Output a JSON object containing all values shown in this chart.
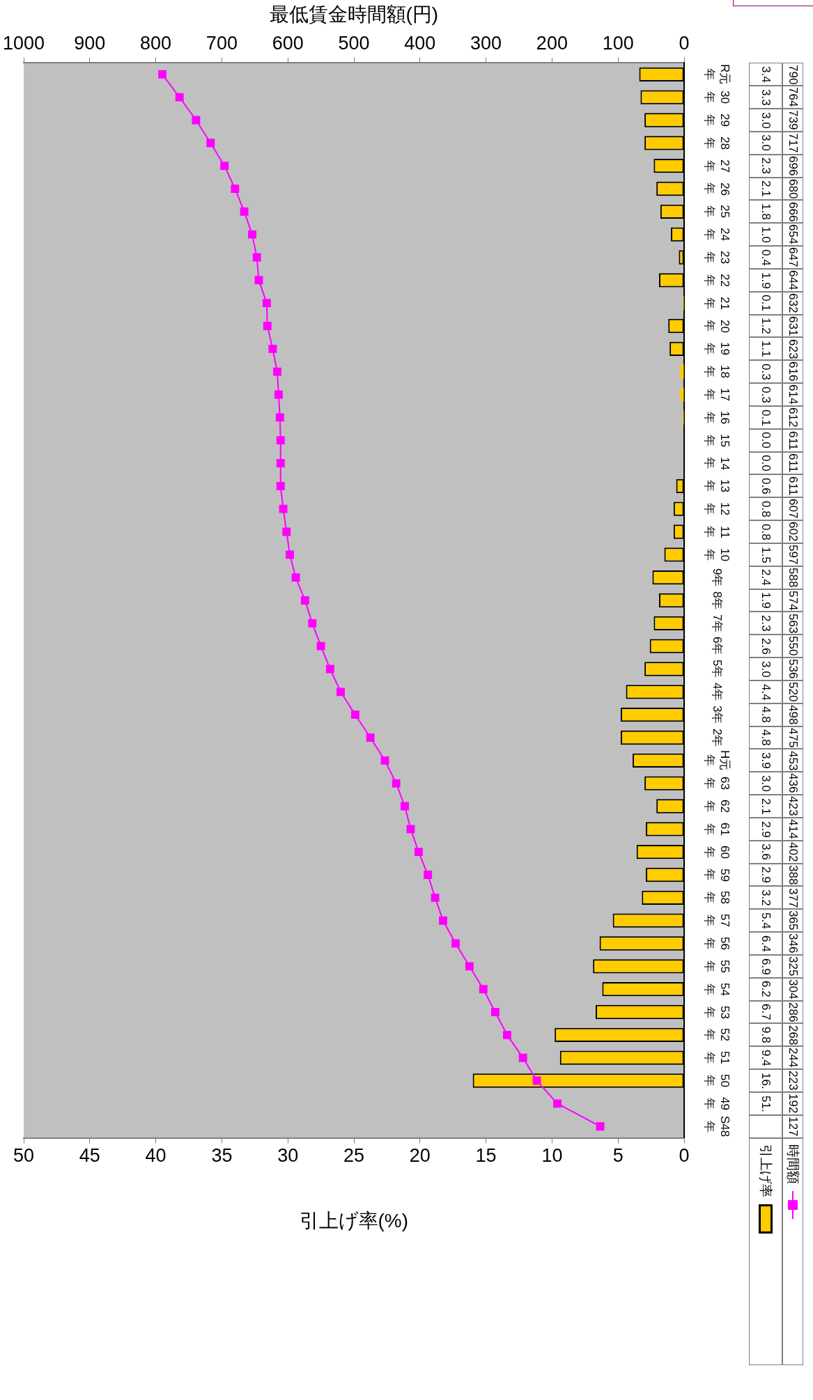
{
  "chart_data": {
    "type": "bar",
    "orientation": "horizontal",
    "xlabel": "引上げ率(%)",
    "x2label": "最低賃金時間額(円)",
    "categories": [
      "R元年",
      "30年",
      "29年",
      "28年",
      "27年",
      "26年",
      "25年",
      "24年",
      "23年",
      "22年",
      "21年",
      "20年",
      "19年",
      "18年",
      "17年",
      "16年",
      "15年",
      "14年",
      "13年",
      "12年",
      "11年",
      "10年",
      "9年",
      "8年",
      "7年",
      "6年",
      "5年",
      "4年",
      "3年",
      "2年",
      "H元年",
      "63年",
      "62年",
      "61年",
      "60年",
      "59年",
      "58年",
      "57年",
      "56年",
      "55年",
      "54年",
      "53年",
      "52年",
      "51年",
      "50年",
      "49年",
      "S48年"
    ],
    "series": [
      {
        "name": "引上げ率",
        "type": "bar",
        "color": "#ffcc00",
        "values": [
          3.4,
          3.3,
          3.0,
          3.0,
          2.3,
          2.1,
          1.8,
          1.0,
          0.4,
          1.9,
          0.1,
          1.2,
          1.1,
          0.3,
          0.3,
          0.1,
          0.0,
          0.0,
          0.6,
          0.8,
          0.8,
          1.5,
          2.4,
          1.9,
          2.3,
          2.6,
          3.0,
          4.4,
          4.8,
          4.8,
          3.9,
          3.0,
          2.1,
          2.9,
          3.6,
          2.9,
          3.2,
          5.4,
          6.4,
          6.9,
          6.2,
          6.7,
          9.8,
          9.4,
          16,
          null,
          null
        ],
        "value_labels": [
          "3.4",
          "3.3",
          "3.0",
          "3.0",
          "2.3",
          "2.1",
          "1.8",
          "1.0",
          "0.4",
          "1.9",
          "0.1",
          "1.2",
          "1.1",
          "0.3",
          "0.3",
          "0.1",
          "0.0",
          "0.0",
          "0.6",
          "0.8",
          "0.8",
          "1.5",
          "2.4",
          "1.9",
          "2.3",
          "2.6",
          "3.0",
          "4.4",
          "4.8",
          "4.8",
          "3.9",
          "3.0",
          "2.1",
          "2.9",
          "3.6",
          "2.9",
          "3.2",
          "5.4",
          "6.4",
          "6.9",
          "6.2",
          "6.7",
          "9.8",
          "9.4",
          "16.",
          "51.",
          null
        ]
      },
      {
        "name": "時間額",
        "type": "line",
        "axis": "x2",
        "color": "#ff00ff",
        "values": [
          790,
          764,
          739,
          717,
          696,
          680,
          666,
          654,
          647,
          644,
          632,
          631,
          623,
          616,
          614,
          612,
          611,
          611,
          611,
          607,
          602,
          597,
          588,
          574,
          563,
          550,
          536,
          520,
          498,
          475,
          453,
          436,
          423,
          414,
          402,
          388,
          377,
          365,
          346,
          325,
          304,
          286,
          268,
          244,
          223,
          192,
          127
        ],
        "value_labels": [
          "790",
          "764",
          "739",
          "717",
          "696",
          "680",
          "666",
          "654",
          "647",
          "644",
          "632",
          "631",
          "623",
          "616",
          "614",
          "612",
          "611",
          "611",
          "611",
          "607",
          "602",
          "597",
          "588",
          "574",
          "563",
          "550",
          "536",
          "520",
          "498",
          "475",
          "453",
          "436",
          "423",
          "414",
          "402",
          "388",
          "377",
          "365",
          "346",
          "325",
          "304",
          "286",
          "268",
          "244",
          "223",
          "192",
          "127"
        ]
      }
    ],
    "xlim": [
      50,
      0
    ],
    "xticks": [
      0,
      5,
      10,
      15,
      20,
      25,
      30,
      35,
      40,
      45,
      50
    ],
    "x2lim": [
      1000,
      0
    ],
    "x2ticks": [
      0,
      100,
      200,
      300,
      400,
      500,
      600,
      700,
      800,
      900,
      1000
    ],
    "marker": "square",
    "legend": "bottom right"
  }
}
